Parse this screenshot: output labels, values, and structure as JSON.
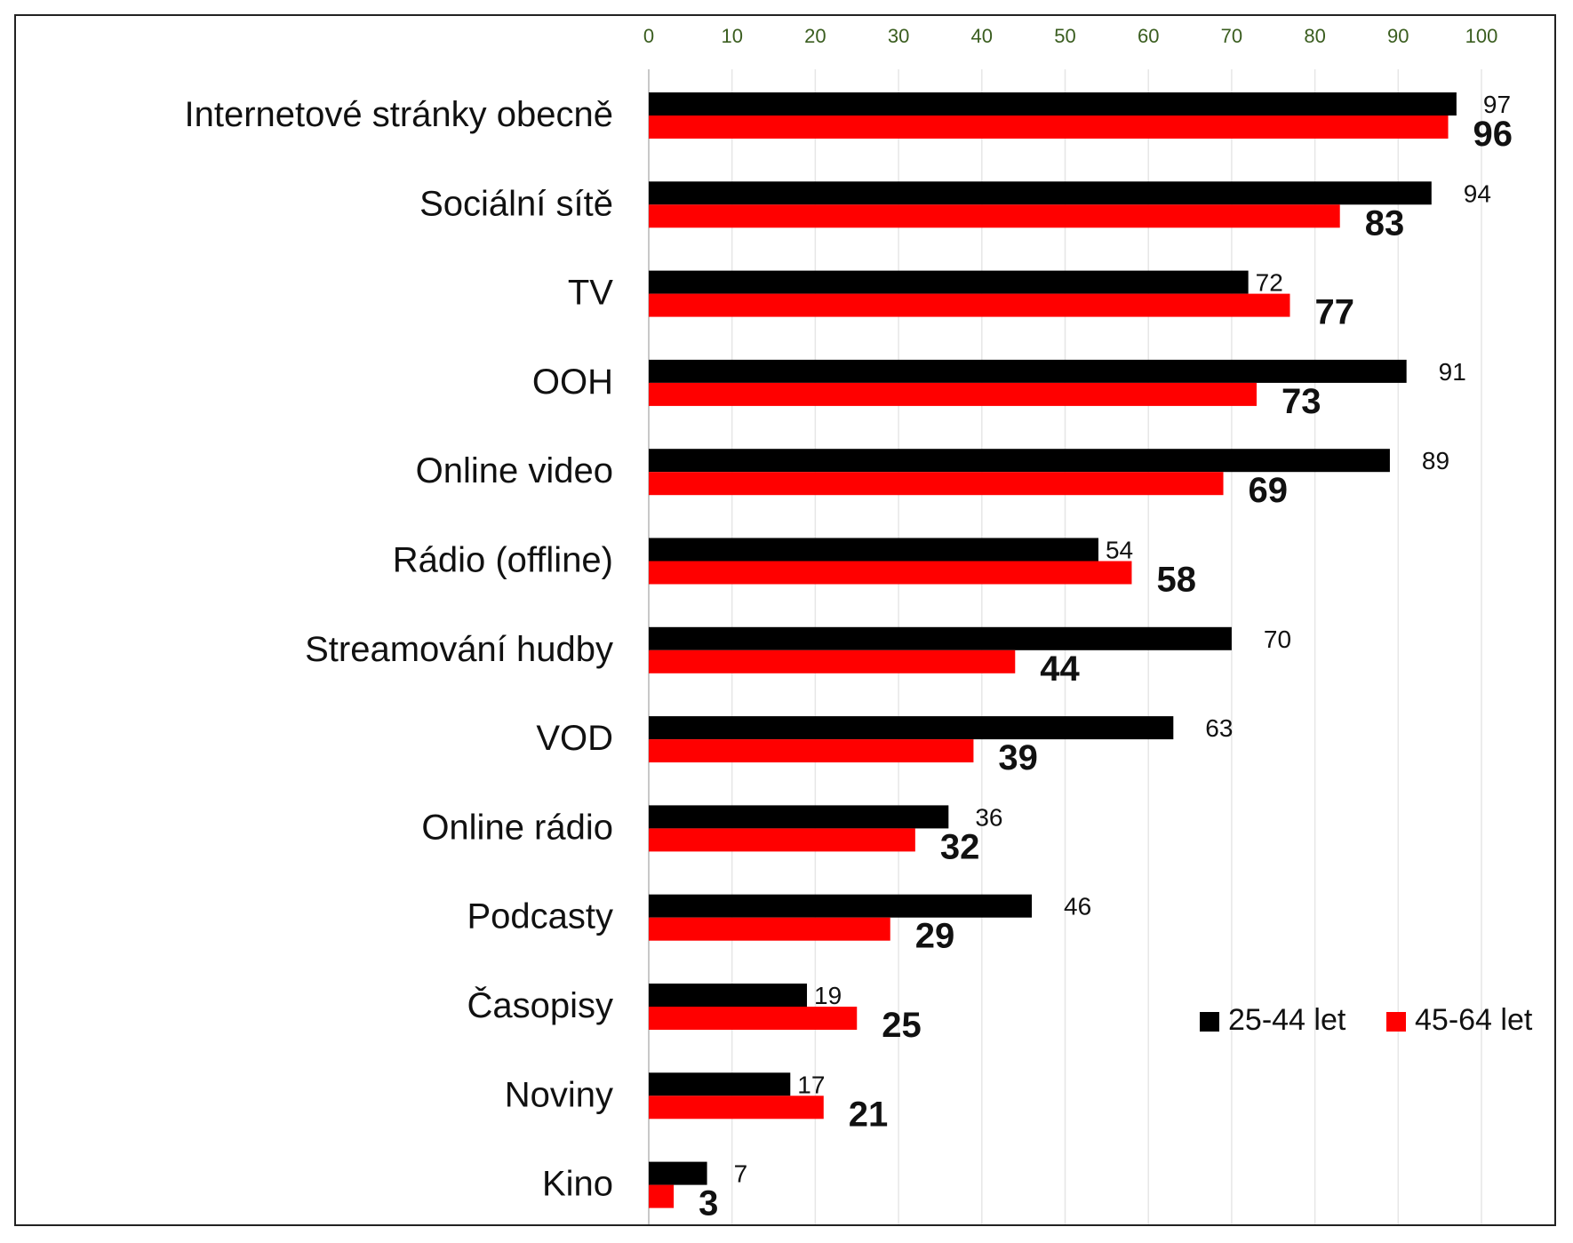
{
  "chart_data": {
    "type": "bar",
    "orientation": "horizontal",
    "categories": [
      "Internetové stránky obecně",
      "Sociální sítě",
      "TV",
      "OOH",
      "Online video",
      "Rádio (offline)",
      "Streamování hudby",
      "VOD",
      "Online rádio",
      "Podcasty",
      "Časopisy",
      "Noviny",
      "Kino"
    ],
    "series": [
      {
        "name": "25-44 let",
        "color": "#000000",
        "values": [
          97,
          94,
          72,
          91,
          89,
          54,
          70,
          63,
          36,
          46,
          19,
          17,
          7
        ]
      },
      {
        "name": "45-64 let",
        "color": "#ff0000",
        "values": [
          96,
          83,
          77,
          73,
          69,
          58,
          44,
          39,
          32,
          29,
          25,
          21,
          3
        ]
      }
    ],
    "xlim": [
      0,
      100
    ],
    "xticks": [
      "0",
      "10",
      "20",
      "30",
      "40",
      "50",
      "60",
      "70",
      "80",
      "90",
      "100"
    ],
    "xaxis_position": "top",
    "grid": true,
    "legend_position": "bottom-right",
    "title": "",
    "xlabel": "",
    "ylabel": ""
  }
}
